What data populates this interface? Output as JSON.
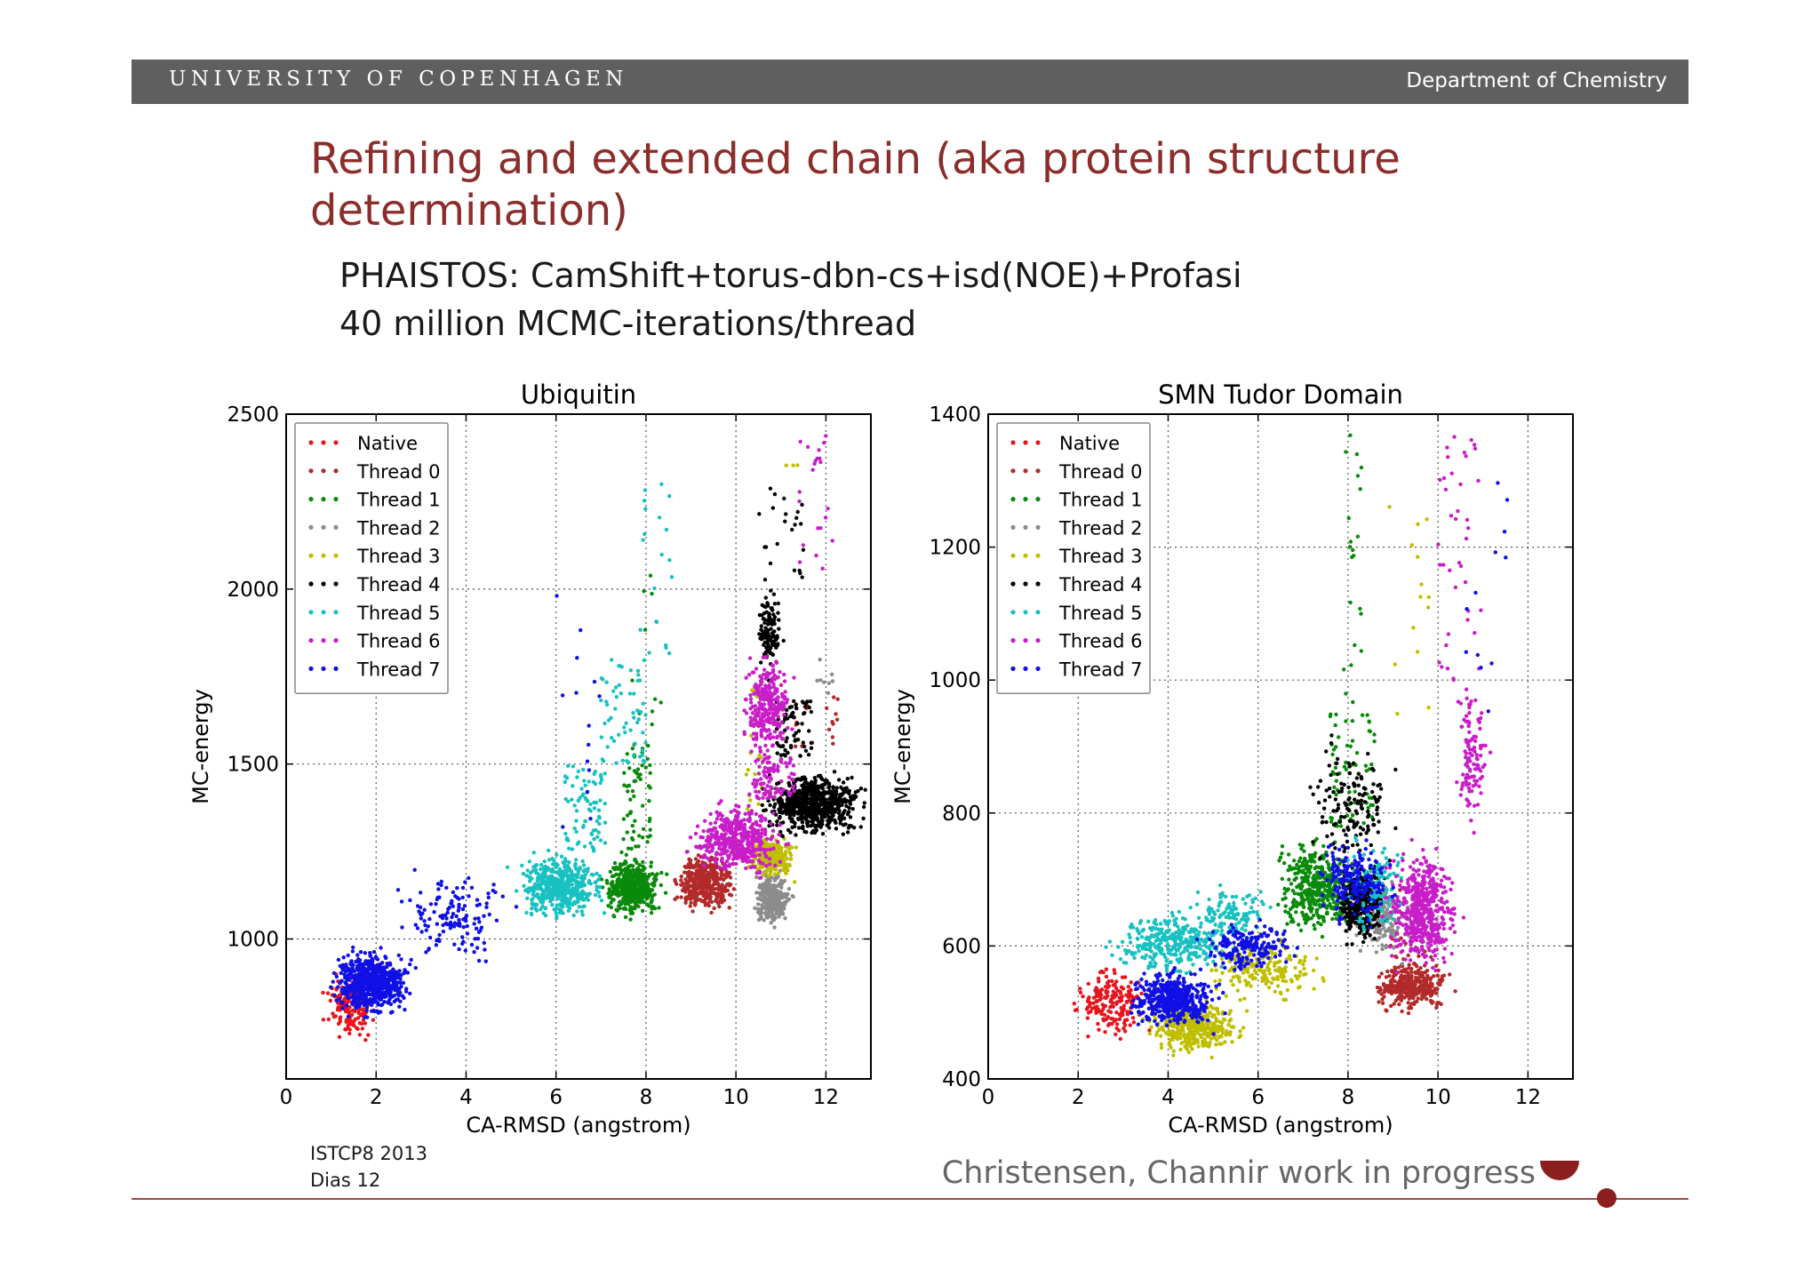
{
  "header": {
    "university": "UNIVERSITY OF COPENHAGEN",
    "department": "Department of Chemistry"
  },
  "slide": {
    "title": "Refining and extended chain (aka protein structure determination)",
    "bullets": [
      "PHAISTOS: CamShift+torus-dbn-cs+isd(NOE)+Profasi",
      "40 million MCMC-iterations/thread"
    ]
  },
  "footer": {
    "event": "ISTCP8 2013",
    "slide_number": "Dias 12",
    "credit": "Christensen, Channir work in progress"
  },
  "chart_data": [
    {
      "type": "scatter",
      "title": "Ubiquitin",
      "xlabel": "CA-RMSD (angstrom)",
      "ylabel": "MC-energy",
      "xlim": [
        0,
        13
      ],
      "ylim": [
        600,
        2500
      ],
      "xticks": [
        0,
        2,
        4,
        6,
        8,
        10,
        12
      ],
      "yticks": [
        1000,
        1500,
        2000,
        2500
      ],
      "grid": true,
      "legend": "top-left",
      "series": [
        {
          "name": "Native",
          "color": "#e8141c",
          "clusters": [
            {
              "x": [
                0.9,
                2.0
              ],
              "y": [
                720,
                900
              ],
              "n": 160
            }
          ]
        },
        {
          "name": "Thread 0",
          "color": "#b22a2a",
          "clusters": [
            {
              "x": [
                8.7,
                9.9
              ],
              "y": [
                1080,
                1240
              ],
              "n": 420
            },
            {
              "x": [
                11.3,
                12.3
              ],
              "y": [
                1550,
                1700
              ],
              "n": 18
            }
          ]
        },
        {
          "name": "Thread 1",
          "color": "#0a8a0a",
          "clusters": [
            {
              "x": [
                7.1,
                8.3
              ],
              "y": [
                1070,
                1230
              ],
              "n": 480
            },
            {
              "x": [
                7.5,
                8.1
              ],
              "y": [
                1250,
                1560
              ],
              "n": 60
            },
            {
              "x": [
                7.6,
                8.8
              ],
              "y": [
                1560,
                2050
              ],
              "n": 10
            }
          ]
        },
        {
          "name": "Thread 2",
          "color": "#8c8c8c",
          "clusters": [
            {
              "x": [
                10.4,
                11.2
              ],
              "y": [
                1040,
                1200
              ],
              "n": 300
            },
            {
              "x": [
                11.6,
                12.4
              ],
              "y": [
                1690,
                1800
              ],
              "n": 8
            }
          ]
        },
        {
          "name": "Thread 3",
          "color": "#bfbf00",
          "clusters": [
            {
              "x": [
                10.3,
                11.3
              ],
              "y": [
                1180,
                1290
              ],
              "n": 240
            },
            {
              "x": [
                10.2,
                10.6
              ],
              "y": [
                1300,
                1740
              ],
              "n": 24
            },
            {
              "x": [
                11.1,
                11.4
              ],
              "y": [
                2350,
                2470
              ],
              "n": 3
            }
          ]
        },
        {
          "name": "Thread 4",
          "color": "#000000",
          "clusters": [
            {
              "x": [
                10.7,
                12.8
              ],
              "y": [
                1300,
                1470
              ],
              "n": 650
            },
            {
              "x": [
                10.5,
                11.0
              ],
              "y": [
                1760,
                2000
              ],
              "n": 120
            },
            {
              "x": [
                10.9,
                11.7
              ],
              "y": [
                1520,
                1680
              ],
              "n": 70
            },
            {
              "x": [
                10.5,
                11.5
              ],
              "y": [
                2030,
                2300
              ],
              "n": 22
            }
          ]
        },
        {
          "name": "Thread 5",
          "color": "#19c1c1",
          "clusters": [
            {
              "x": [
                5.2,
                7.0
              ],
              "y": [
                1060,
                1240
              ],
              "n": 480
            },
            {
              "x": [
                6.2,
                7.1
              ],
              "y": [
                1250,
                1500
              ],
              "n": 80
            },
            {
              "x": [
                7.0,
                8.0
              ],
              "y": [
                1500,
                1800
              ],
              "n": 60
            },
            {
              "x": [
                7.8,
                8.6
              ],
              "y": [
                1800,
                2300
              ],
              "n": 20
            }
          ]
        },
        {
          "name": "Thread 6",
          "color": "#c81ec8",
          "clusters": [
            {
              "x": [
                9.1,
                11.0
              ],
              "y": [
                1190,
                1380
              ],
              "n": 460
            },
            {
              "x": [
                10.2,
                11.2
              ],
              "y": [
                1530,
                1800
              ],
              "n": 280
            },
            {
              "x": [
                10.3,
                11.3
              ],
              "y": [
                1400,
                1520
              ],
              "n": 90
            },
            {
              "x": [
                11.4,
                12.2
              ],
              "y": [
                2050,
                2450
              ],
              "n": 22
            }
          ]
        },
        {
          "name": "Thread 7",
          "color": "#1010e6",
          "clusters": [
            {
              "x": [
                1.1,
                2.7
              ],
              "y": [
                790,
                960
              ],
              "n": 650
            },
            {
              "x": [
                2.5,
                5.0
              ],
              "y": [
                930,
                1200
              ],
              "n": 140
            },
            {
              "x": [
                6.0,
                7.0
              ],
              "y": [
                1200,
                2150
              ],
              "n": 14
            }
          ]
        }
      ]
    },
    {
      "type": "scatter",
      "title": "SMN Tudor Domain",
      "xlabel": "CA-RMSD (angstrom)",
      "ylabel": "MC-energy",
      "xlim": [
        0,
        13
      ],
      "ylim": [
        400,
        1400
      ],
      "xticks": [
        0,
        2,
        4,
        6,
        8,
        10,
        12
      ],
      "yticks": [
        400,
        600,
        800,
        1000,
        1200,
        1400
      ],
      "grid": true,
      "legend": "top-left",
      "series": [
        {
          "name": "Native",
          "color": "#e8141c",
          "clusters": [
            {
              "x": [
                2.0,
                3.6
              ],
              "y": [
                460,
                570
              ],
              "n": 180
            }
          ]
        },
        {
          "name": "Thread 0",
          "color": "#b22a2a",
          "clusters": [
            {
              "x": [
                8.6,
                10.2
              ],
              "y": [
                505,
                575
              ],
              "n": 320
            },
            {
              "x": [
                8.8,
                10.0
              ],
              "y": [
                560,
                700
              ],
              "n": 30
            }
          ]
        },
        {
          "name": "Thread 1",
          "color": "#0a8a0a",
          "clusters": [
            {
              "x": [
                6.4,
                8.2
              ],
              "y": [
                620,
                760
              ],
              "n": 420
            },
            {
              "x": [
                7.6,
                8.6
              ],
              "y": [
                780,
                950
              ],
              "n": 70
            },
            {
              "x": [
                7.9,
                8.3
              ],
              "y": [
                950,
                1370
              ],
              "n": 22
            }
          ]
        },
        {
          "name": "Thread 2",
          "color": "#8c8c8c",
          "clusters": [
            {
              "x": [
                8.2,
                9.2
              ],
              "y": [
                590,
                700
              ],
              "n": 160
            }
          ]
        },
        {
          "name": "Thread 3",
          "color": "#bfbf00",
          "clusters": [
            {
              "x": [
                3.6,
                5.6
              ],
              "y": [
                440,
                520
              ],
              "n": 380
            },
            {
              "x": [
                5.0,
                7.4
              ],
              "y": [
                520,
                610
              ],
              "n": 170
            },
            {
              "x": [
                8.9,
                9.8
              ],
              "y": [
                900,
                1300
              ],
              "n": 14
            }
          ]
        },
        {
          "name": "Thread 4",
          "color": "#000000",
          "clusters": [
            {
              "x": [
                7.8,
                8.8
              ],
              "y": [
                610,
                720
              ],
              "n": 320
            },
            {
              "x": [
                7.2,
                9.0
              ],
              "y": [
                720,
                900
              ],
              "n": 140
            }
          ]
        },
        {
          "name": "Thread 5",
          "color": "#19c1c1",
          "clusters": [
            {
              "x": [
                2.8,
                5.5
              ],
              "y": [
                560,
                650
              ],
              "n": 330
            },
            {
              "x": [
                4.6,
                6.2
              ],
              "y": [
                610,
                690
              ],
              "n": 110
            },
            {
              "x": [
                8.0,
                9.3
              ],
              "y": [
                620,
                760
              ],
              "n": 110
            }
          ]
        },
        {
          "name": "Thread 6",
          "color": "#c81ec8",
          "clusters": [
            {
              "x": [
                8.9,
                10.4
              ],
              "y": [
                570,
                740
              ],
              "n": 520
            },
            {
              "x": [
                10.4,
                11.1
              ],
              "y": [
                780,
                1000
              ],
              "n": 110
            },
            {
              "x": [
                10.0,
                11.0
              ],
              "y": [
                1000,
                1380
              ],
              "n": 40
            }
          ]
        },
        {
          "name": "Thread 7",
          "color": "#1010e6",
          "clusters": [
            {
              "x": [
                3.2,
                5.0
              ],
              "y": [
                480,
                560
              ],
              "n": 480
            },
            {
              "x": [
                4.8,
                6.8
              ],
              "y": [
                560,
                640
              ],
              "n": 190
            },
            {
              "x": [
                7.4,
                9.0
              ],
              "y": [
                640,
                760
              ],
              "n": 190
            },
            {
              "x": [
                10.6,
                11.6
              ],
              "y": [
                950,
                1380
              ],
              "n": 12
            }
          ]
        }
      ]
    }
  ]
}
